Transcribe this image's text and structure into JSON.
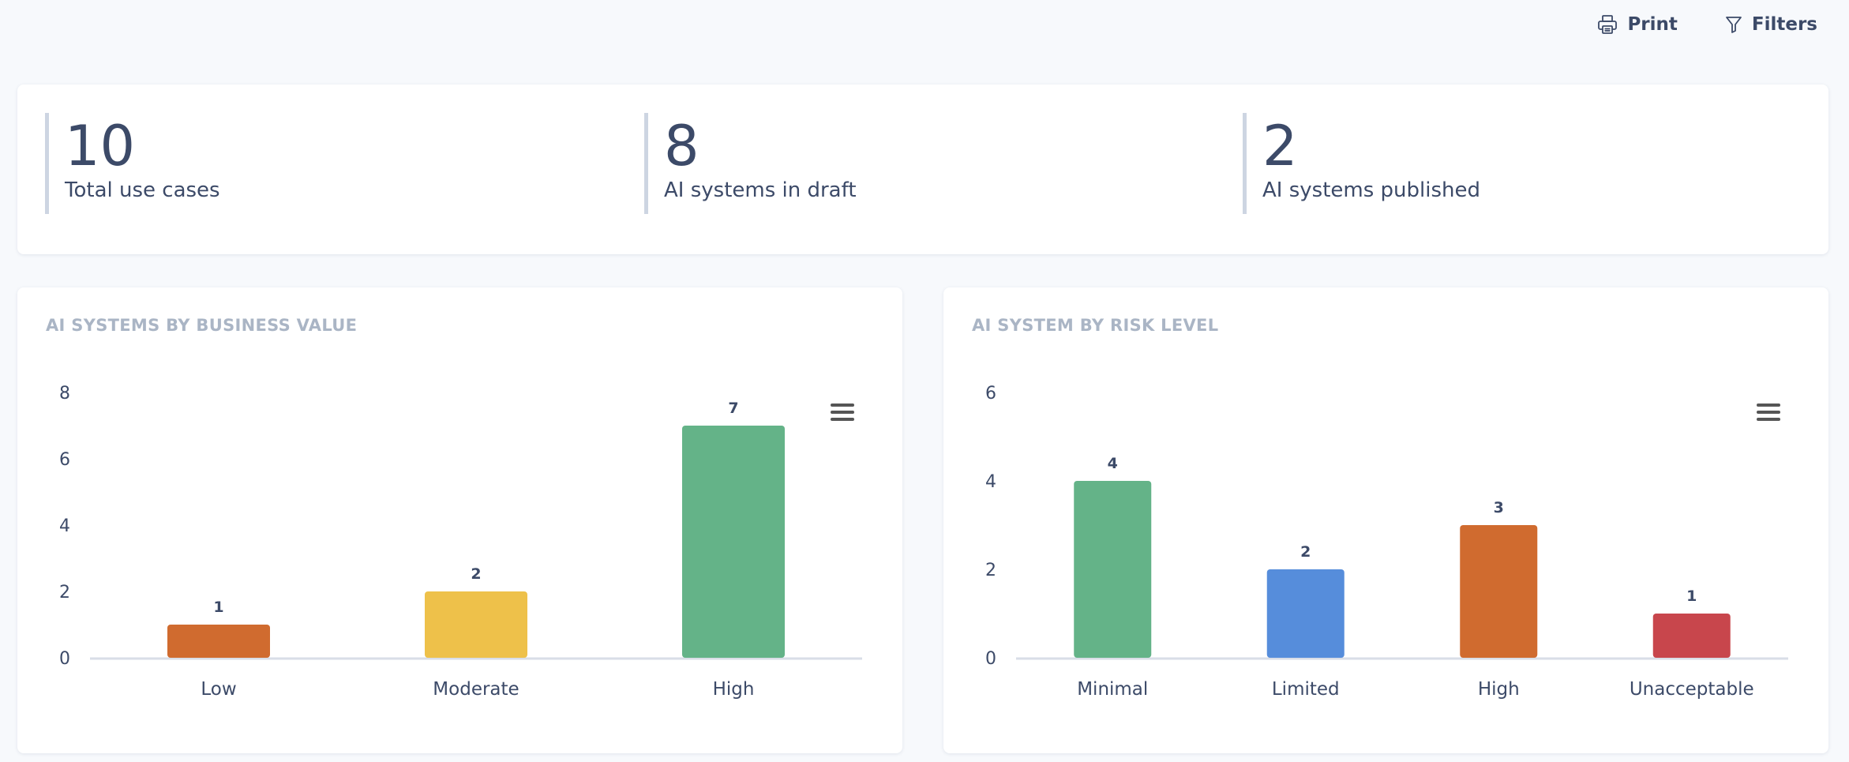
{
  "toolbar": {
    "print_label": "Print",
    "filters_label": "Filters"
  },
  "stats": [
    {
      "value": "10",
      "label": "Total use cases"
    },
    {
      "value": "8",
      "label": "AI systems in draft"
    },
    {
      "value": "2",
      "label": "AI systems published"
    }
  ],
  "colors": {
    "green": "#64b388",
    "orange": "#d06b2f",
    "yellow": "#eec14a",
    "blue": "#568ddb",
    "red": "#c8464c",
    "axis_text": "#3c4a68",
    "baseline": "#d9dee7"
  },
  "chart_data": [
    {
      "type": "bar",
      "title": "AI SYSTEMS BY BUSINESS VALUE",
      "categories": [
        "Low",
        "Moderate",
        "High"
      ],
      "values": [
        1,
        2,
        7
      ],
      "bar_colors": [
        "#d06b2f",
        "#eec14a",
        "#64b388"
      ],
      "ylim": [
        0,
        8
      ],
      "yticks": [
        0,
        2,
        4,
        6,
        8
      ],
      "xlabel": "",
      "ylabel": "",
      "grid": false,
      "data_labels": true
    },
    {
      "type": "bar",
      "title": "AI SYSTEM BY RISK LEVEL",
      "categories": [
        "Minimal",
        "Limited",
        "High",
        "Unacceptable"
      ],
      "values": [
        4,
        2,
        3,
        1
      ],
      "bar_colors": [
        "#64b388",
        "#568ddb",
        "#d06b2f",
        "#c8464c"
      ],
      "ylim": [
        0,
        6
      ],
      "yticks": [
        0,
        2,
        4,
        6
      ],
      "xlabel": "",
      "ylabel": "",
      "grid": false,
      "data_labels": true
    }
  ]
}
